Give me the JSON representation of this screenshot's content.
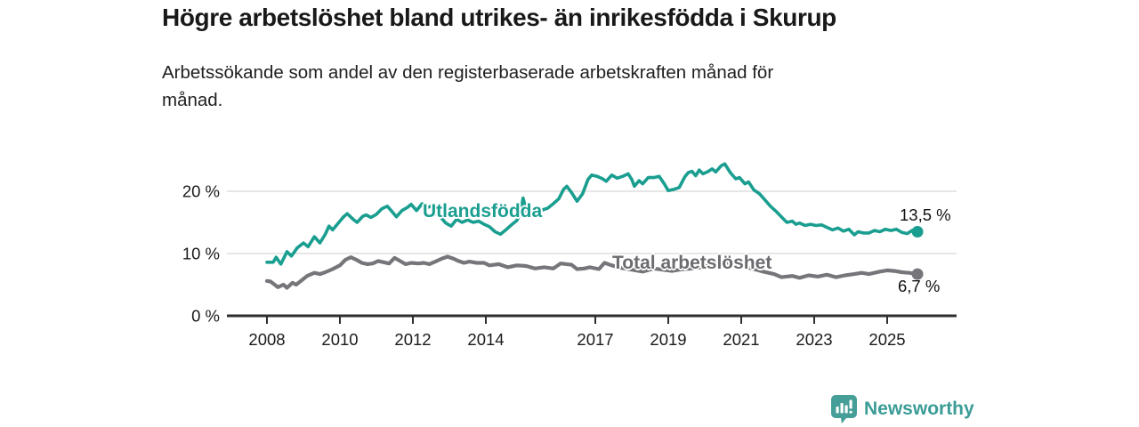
{
  "header": {
    "title": "Högre arbetslöshet bland utrikes- än inrikesfödda i Skurup",
    "subtitle_lines": [
      "Arbetssökande som andel av den registerbaserade arbetskraften månad för",
      "månad."
    ]
  },
  "chart_data": {
    "type": "line",
    "title": "Högre arbetslöshet bland utrikes- än inrikesfödda i Skurup",
    "subtitle": "Arbetssökande som andel av den registerbaserade arbetskraften månad för månad.",
    "xlabel": "",
    "ylabel": "",
    "x_range": [
      2008.0,
      2025.83
    ],
    "ylim": [
      0,
      26
    ],
    "grid": "horizontal-gridlines-at-10-and-20",
    "legend": "inline-labels-on-lines",
    "axis_color": "#2e2e2e",
    "grid_color": "#d8d8d8",
    "tick_label_color": "#1a1a1a",
    "x_ticks": [
      {
        "value": 2008,
        "label": "2008"
      },
      {
        "value": 2010,
        "label": "2010"
      },
      {
        "value": 2012,
        "label": "2012"
      },
      {
        "value": 2014,
        "label": "2014"
      },
      {
        "value": 2017,
        "label": "2017"
      },
      {
        "value": 2019,
        "label": "2019"
      },
      {
        "value": 2021,
        "label": "2021"
      },
      {
        "value": 2023,
        "label": "2023"
      },
      {
        "value": 2025,
        "label": "2025"
      }
    ],
    "y_ticks": [
      {
        "value": 0,
        "label": "0 %"
      },
      {
        "value": 10,
        "label": "10 %"
      },
      {
        "value": 20,
        "label": "20 %"
      }
    ],
    "series": [
      {
        "name": "Utlandsfödda",
        "color": "#1a9e90",
        "end_label": "13,5 %",
        "end_value": 13.5,
        "points": [
          [
            2008.0,
            8.6
          ],
          [
            2008.17,
            8.6
          ],
          [
            2008.25,
            9.4
          ],
          [
            2008.38,
            8.3
          ],
          [
            2008.55,
            10.3
          ],
          [
            2008.67,
            9.6
          ],
          [
            2008.83,
            10.9
          ],
          [
            2009.0,
            11.7
          ],
          [
            2009.13,
            11.1
          ],
          [
            2009.3,
            12.7
          ],
          [
            2009.45,
            11.7
          ],
          [
            2009.6,
            13.1
          ],
          [
            2009.7,
            14.4
          ],
          [
            2009.8,
            13.8
          ],
          [
            2010.0,
            15.2
          ],
          [
            2010.1,
            15.9
          ],
          [
            2010.2,
            16.4
          ],
          [
            2010.38,
            15.4
          ],
          [
            2010.47,
            15.0
          ],
          [
            2010.63,
            16.0
          ],
          [
            2010.72,
            16.2
          ],
          [
            2010.85,
            15.8
          ],
          [
            2011.0,
            16.3
          ],
          [
            2011.15,
            17.2
          ],
          [
            2011.3,
            17.6
          ],
          [
            2011.42,
            16.8
          ],
          [
            2011.55,
            15.9
          ],
          [
            2011.7,
            16.9
          ],
          [
            2011.85,
            17.4
          ],
          [
            2011.95,
            17.9
          ],
          [
            2012.1,
            16.9
          ],
          [
            2012.25,
            18.0
          ],
          [
            2012.4,
            17.4
          ],
          [
            2012.5,
            17.6
          ],
          [
            2012.62,
            16.4
          ],
          [
            2012.75,
            15.9
          ],
          [
            2012.9,
            14.9
          ],
          [
            2013.05,
            14.4
          ],
          [
            2013.2,
            15.5
          ],
          [
            2013.35,
            15.0
          ],
          [
            2013.5,
            15.4
          ],
          [
            2013.65,
            15.0
          ],
          [
            2013.8,
            15.2
          ],
          [
            2013.95,
            14.7
          ],
          [
            2014.1,
            14.3
          ],
          [
            2014.25,
            13.5
          ],
          [
            2014.4,
            13.1
          ],
          [
            2014.55,
            13.8
          ],
          [
            2014.7,
            14.6
          ],
          [
            2014.85,
            15.3
          ],
          [
            2014.95,
            16.5
          ],
          [
            2015.02,
            18.9
          ],
          [
            2015.12,
            16.8
          ],
          [
            2015.25,
            16.3
          ],
          [
            2015.4,
            16.8
          ],
          [
            2015.55,
            17.0
          ],
          [
            2015.7,
            17.3
          ],
          [
            2015.85,
            18.0
          ],
          [
            2016.0,
            18.8
          ],
          [
            2016.13,
            20.3
          ],
          [
            2016.22,
            20.8
          ],
          [
            2016.35,
            19.8
          ],
          [
            2016.5,
            18.4
          ],
          [
            2016.65,
            19.6
          ],
          [
            2016.8,
            21.9
          ],
          [
            2016.9,
            22.6
          ],
          [
            2017.05,
            22.4
          ],
          [
            2017.2,
            22.0
          ],
          [
            2017.3,
            21.6
          ],
          [
            2017.45,
            22.6
          ],
          [
            2017.6,
            22.1
          ],
          [
            2017.75,
            22.4
          ],
          [
            2017.9,
            22.8
          ],
          [
            2018.0,
            21.9
          ],
          [
            2018.07,
            20.8
          ],
          [
            2018.2,
            21.7
          ],
          [
            2018.3,
            21.2
          ],
          [
            2018.45,
            22.2
          ],
          [
            2018.6,
            22.2
          ],
          [
            2018.75,
            22.4
          ],
          [
            2018.9,
            21.1
          ],
          [
            2019.0,
            20.1
          ],
          [
            2019.15,
            20.3
          ],
          [
            2019.3,
            20.6
          ],
          [
            2019.45,
            22.3
          ],
          [
            2019.55,
            23.0
          ],
          [
            2019.65,
            23.2
          ],
          [
            2019.75,
            22.5
          ],
          [
            2019.85,
            23.4
          ],
          [
            2019.95,
            22.8
          ],
          [
            2020.1,
            23.2
          ],
          [
            2020.2,
            23.6
          ],
          [
            2020.3,
            23.1
          ],
          [
            2020.45,
            24.1
          ],
          [
            2020.55,
            24.4
          ],
          [
            2020.7,
            23.0
          ],
          [
            2020.85,
            22.0
          ],
          [
            2020.95,
            22.2
          ],
          [
            2021.1,
            21.2
          ],
          [
            2021.2,
            21.5
          ],
          [
            2021.35,
            20.2
          ],
          [
            2021.5,
            19.6
          ],
          [
            2021.65,
            18.6
          ],
          [
            2021.8,
            17.6
          ],
          [
            2021.95,
            16.8
          ],
          [
            2022.1,
            15.9
          ],
          [
            2022.25,
            15.0
          ],
          [
            2022.4,
            15.2
          ],
          [
            2022.5,
            14.7
          ],
          [
            2022.6,
            14.9
          ],
          [
            2022.75,
            14.5
          ],
          [
            2022.9,
            14.7
          ],
          [
            2023.05,
            14.5
          ],
          [
            2023.2,
            14.6
          ],
          [
            2023.35,
            14.2
          ],
          [
            2023.5,
            13.8
          ],
          [
            2023.65,
            14.1
          ],
          [
            2023.8,
            13.6
          ],
          [
            2023.95,
            13.9
          ],
          [
            2024.1,
            13.0
          ],
          [
            2024.2,
            13.5
          ],
          [
            2024.35,
            13.3
          ],
          [
            2024.5,
            13.3
          ],
          [
            2024.65,
            13.7
          ],
          [
            2024.8,
            13.5
          ],
          [
            2024.95,
            13.9
          ],
          [
            2025.1,
            13.7
          ],
          [
            2025.25,
            13.9
          ],
          [
            2025.4,
            13.4
          ],
          [
            2025.55,
            13.2
          ],
          [
            2025.68,
            13.7
          ],
          [
            2025.83,
            13.5
          ]
        ]
      },
      {
        "name": "Total arbetslöshet",
        "color": "#76767a",
        "end_label": "6,7 %",
        "end_value": 6.7,
        "points": [
          [
            2008.0,
            5.6
          ],
          [
            2008.1,
            5.5
          ],
          [
            2008.3,
            4.6
          ],
          [
            2008.45,
            5.0
          ],
          [
            2008.55,
            4.5
          ],
          [
            2008.7,
            5.3
          ],
          [
            2008.8,
            5.0
          ],
          [
            2008.95,
            5.7
          ],
          [
            2009.1,
            6.4
          ],
          [
            2009.3,
            6.9
          ],
          [
            2009.45,
            6.7
          ],
          [
            2009.6,
            7.0
          ],
          [
            2009.8,
            7.5
          ],
          [
            2010.0,
            8.1
          ],
          [
            2010.15,
            9.0
          ],
          [
            2010.3,
            9.4
          ],
          [
            2010.45,
            9.0
          ],
          [
            2010.6,
            8.5
          ],
          [
            2010.75,
            8.3
          ],
          [
            2010.9,
            8.4
          ],
          [
            2011.05,
            8.8
          ],
          [
            2011.2,
            8.6
          ],
          [
            2011.35,
            8.4
          ],
          [
            2011.5,
            9.3
          ],
          [
            2011.65,
            8.8
          ],
          [
            2011.8,
            8.3
          ],
          [
            2011.95,
            8.5
          ],
          [
            2012.15,
            8.4
          ],
          [
            2012.3,
            8.5
          ],
          [
            2012.45,
            8.3
          ],
          [
            2012.65,
            8.8
          ],
          [
            2012.8,
            9.2
          ],
          [
            2012.95,
            9.5
          ],
          [
            2013.1,
            9.2
          ],
          [
            2013.25,
            8.8
          ],
          [
            2013.4,
            8.5
          ],
          [
            2013.55,
            8.7
          ],
          [
            2013.75,
            8.5
          ],
          [
            2013.95,
            8.5
          ],
          [
            2014.1,
            8.1
          ],
          [
            2014.35,
            8.3
          ],
          [
            2014.6,
            7.8
          ],
          [
            2014.85,
            8.1
          ],
          [
            2015.1,
            8.0
          ],
          [
            2015.35,
            7.6
          ],
          [
            2015.6,
            7.8
          ],
          [
            2015.85,
            7.6
          ],
          [
            2016.05,
            8.4
          ],
          [
            2016.2,
            8.3
          ],
          [
            2016.35,
            8.2
          ],
          [
            2016.5,
            7.5
          ],
          [
            2016.7,
            7.6
          ],
          [
            2016.85,
            7.8
          ],
          [
            2017.1,
            7.5
          ],
          [
            2017.25,
            8.5
          ],
          [
            2017.45,
            8.1
          ],
          [
            2017.7,
            7.7
          ],
          [
            2018.0,
            7.4
          ],
          [
            2018.3,
            7.1
          ],
          [
            2018.6,
            7.6
          ],
          [
            2018.85,
            7.4
          ],
          [
            2019.1,
            7.2
          ],
          [
            2019.4,
            7.5
          ],
          [
            2019.7,
            7.6
          ],
          [
            2020.0,
            7.9
          ],
          [
            2020.3,
            8.5
          ],
          [
            2020.5,
            8.6
          ],
          [
            2020.75,
            8.4
          ],
          [
            2021.0,
            8.0
          ],
          [
            2021.3,
            7.6
          ],
          [
            2021.6,
            7.1
          ],
          [
            2021.9,
            6.7
          ],
          [
            2022.1,
            6.2
          ],
          [
            2022.4,
            6.4
          ],
          [
            2022.6,
            6.1
          ],
          [
            2022.85,
            6.5
          ],
          [
            2023.1,
            6.3
          ],
          [
            2023.35,
            6.6
          ],
          [
            2023.6,
            6.2
          ],
          [
            2023.85,
            6.5
          ],
          [
            2024.1,
            6.7
          ],
          [
            2024.3,
            6.9
          ],
          [
            2024.5,
            6.7
          ],
          [
            2024.8,
            7.1
          ],
          [
            2025.0,
            7.3
          ],
          [
            2025.2,
            7.2
          ],
          [
            2025.4,
            7.0
          ],
          [
            2025.6,
            6.9
          ],
          [
            2025.83,
            6.7
          ]
        ]
      }
    ]
  },
  "branding": {
    "logo_text": "Newsworthy",
    "logo_color": "#459e98"
  }
}
